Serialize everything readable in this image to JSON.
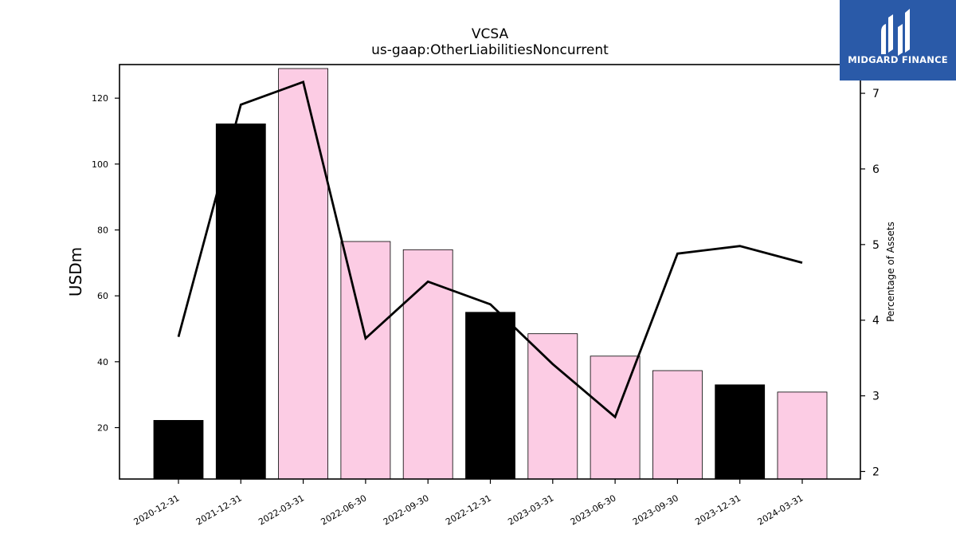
{
  "chart_data": {
    "type": "bar",
    "title": "VCSA",
    "subtitle": "us-gaap:OtherLiabilitiesNoncurrent",
    "ylabel": "USDm",
    "y2label": "Percentage of Assets",
    "categories": [
      "2020-12-31",
      "2021-12-31",
      "2022-03-31",
      "2022-06-30",
      "2022-09-30",
      "2022-12-31",
      "2023-03-31",
      "2023-06-30",
      "2023-09-30",
      "2023-12-31",
      "2024-03-31"
    ],
    "series": [
      {
        "kind": "bar",
        "axis": "left",
        "values": [
          22.2,
          112.2,
          129.0,
          76.5,
          74.0,
          55.0,
          48.5,
          41.7,
          37.3,
          33.0,
          30.8
        ],
        "colors": [
          "#000000",
          "#000000",
          "#fccce4",
          "#fccce4",
          "#fccce4",
          "#000000",
          "#fccce4",
          "#fccce4",
          "#fccce4",
          "#000000",
          "#fccce4"
        ]
      },
      {
        "kind": "line",
        "axis": "right",
        "values": [
          3.78,
          6.85,
          7.15,
          3.76,
          4.51,
          4.21,
          3.42,
          2.72,
          4.88,
          4.98,
          4.76
        ],
        "color": "#000000"
      }
    ],
    "ylim": [
      4.4,
      130.2
    ],
    "y2lim": [
      1.9,
      7.38
    ],
    "yticks": [
      20,
      40,
      60,
      80,
      100,
      120
    ],
    "y2ticks": [
      2,
      3,
      4,
      5,
      6,
      7
    ],
    "grid": false,
    "legend": "none"
  },
  "logo": {
    "text": "MIDGARD FINANCE",
    "bg_color": "#2a5aa8"
  }
}
